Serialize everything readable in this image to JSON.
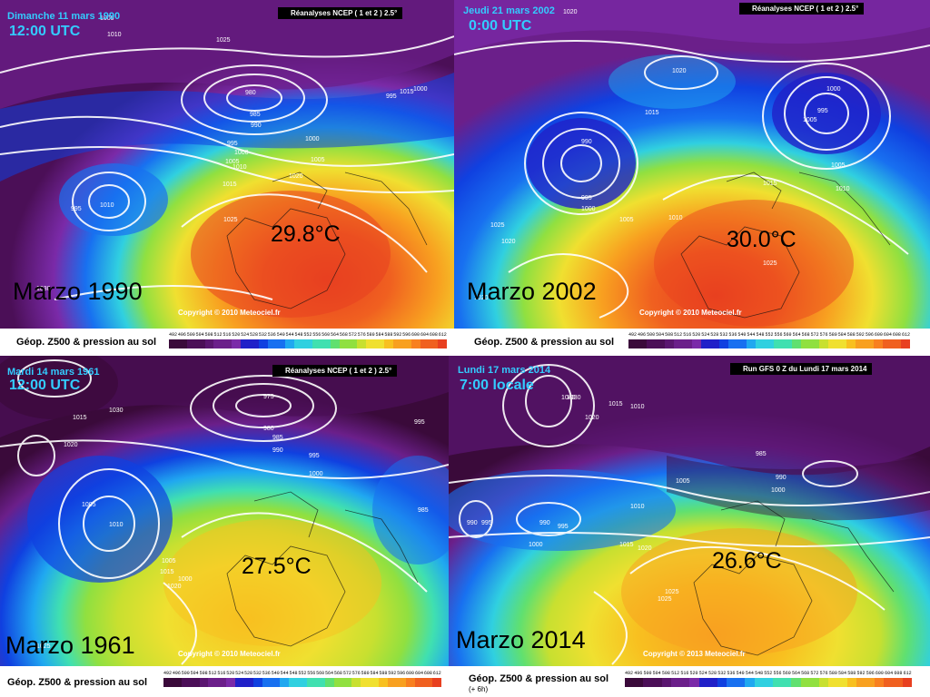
{
  "palette": [
    "#3a0a3a",
    "#4b0f57",
    "#5a1670",
    "#6b1f8a",
    "#7a2aa8",
    "#2020c8",
    "#1040e0",
    "#1870f0",
    "#20a8f0",
    "#30d0e0",
    "#40e0b0",
    "#60e070",
    "#90e040",
    "#c8e030",
    "#f0e030",
    "#f8c020",
    "#f8a020",
    "#f88020",
    "#f06020",
    "#e84020"
  ],
  "scale_values": [
    "492",
    "496",
    "500",
    "504",
    "508",
    "512",
    "516",
    "520",
    "524",
    "528",
    "532",
    "536",
    "540",
    "544",
    "548",
    "552",
    "556",
    "560",
    "564",
    "568",
    "572",
    "576",
    "580",
    "584",
    "588",
    "592",
    "596",
    "600",
    "604",
    "608",
    "612"
  ],
  "panels": [
    {
      "date": "Dimanche 11 mars 1990",
      "time": "12:00 UTC",
      "header": "Réanalyses NCEP ( 1 et 2 ) 2.5°",
      "label": "Marzo 1990",
      "temp": "29.8°C",
      "copyright": "Copyright © 2010 Meteociel.fr",
      "legend": "Géop. Z500 & pression au sol",
      "legend_sub": "",
      "pressure_labels": [
        "1005",
        "1010",
        "980",
        "985",
        "990",
        "995",
        "1000",
        "1005",
        "1010",
        "1015",
        "1020",
        "1025",
        "1030",
        "1000",
        "1005",
        "1010",
        "995",
        "1025",
        "1015",
        "1000",
        "995"
      ]
    },
    {
      "date": "Jeudi 21 mars 2002",
      "time": "0:00 UTC",
      "header": "Réanalyses NCEP ( 1 et 2 ) 2.5°",
      "label": "Marzo 2002",
      "temp": "30.0°C",
      "copyright": "Copyright © 2010 Meteociel.fr",
      "legend": "Géop. Z500 & pression au sol",
      "legend_sub": "",
      "pressure_labels": [
        "1020",
        "1020",
        "1000",
        "995",
        "990",
        "995",
        "1000",
        "1005",
        "1010",
        "1015",
        "1025",
        "1020",
        "1005",
        "1015",
        "1010",
        "1025",
        "1005",
        "1020"
      ]
    },
    {
      "date": "Mardi 14 mars 1961",
      "time": "12:00 UTC",
      "header": "Réanalyses NCEP ( 1 et 2 ) 2.5°",
      "label": "Marzo 1961",
      "temp": "27.5°C",
      "copyright": "Copyright © 2010 Meteociel.fr",
      "legend": "Géop. Z500 & pression au sol",
      "legend_sub": "",
      "pressure_labels": [
        "1030",
        "1015",
        "1020",
        "975",
        "980",
        "985",
        "990",
        "995",
        "1000",
        "1005",
        "1010",
        "1005",
        "1000",
        "1015",
        "1020",
        "1025",
        "985",
        "995"
      ]
    },
    {
      "date": "Lundi 17 mars 2014",
      "time": "7:00 locale",
      "header": "Run GFS 0 Z du Lundi 17 mars 2014",
      "label": "Marzo 2014",
      "temp": "26.6°C",
      "copyright": "Copyright © 2013 Meteociel.fr",
      "legend": "Géop. Z500 & pression au sol",
      "legend_sub": "(+ 6h)",
      "pressure_labels": [
        "1030",
        "1040",
        "1020",
        "1015",
        "1010",
        "1025",
        "990",
        "985",
        "990",
        "1000",
        "1005",
        "995",
        "990",
        "995",
        "1000",
        "1015",
        "1020",
        "1025",
        "1010"
      ]
    }
  ]
}
